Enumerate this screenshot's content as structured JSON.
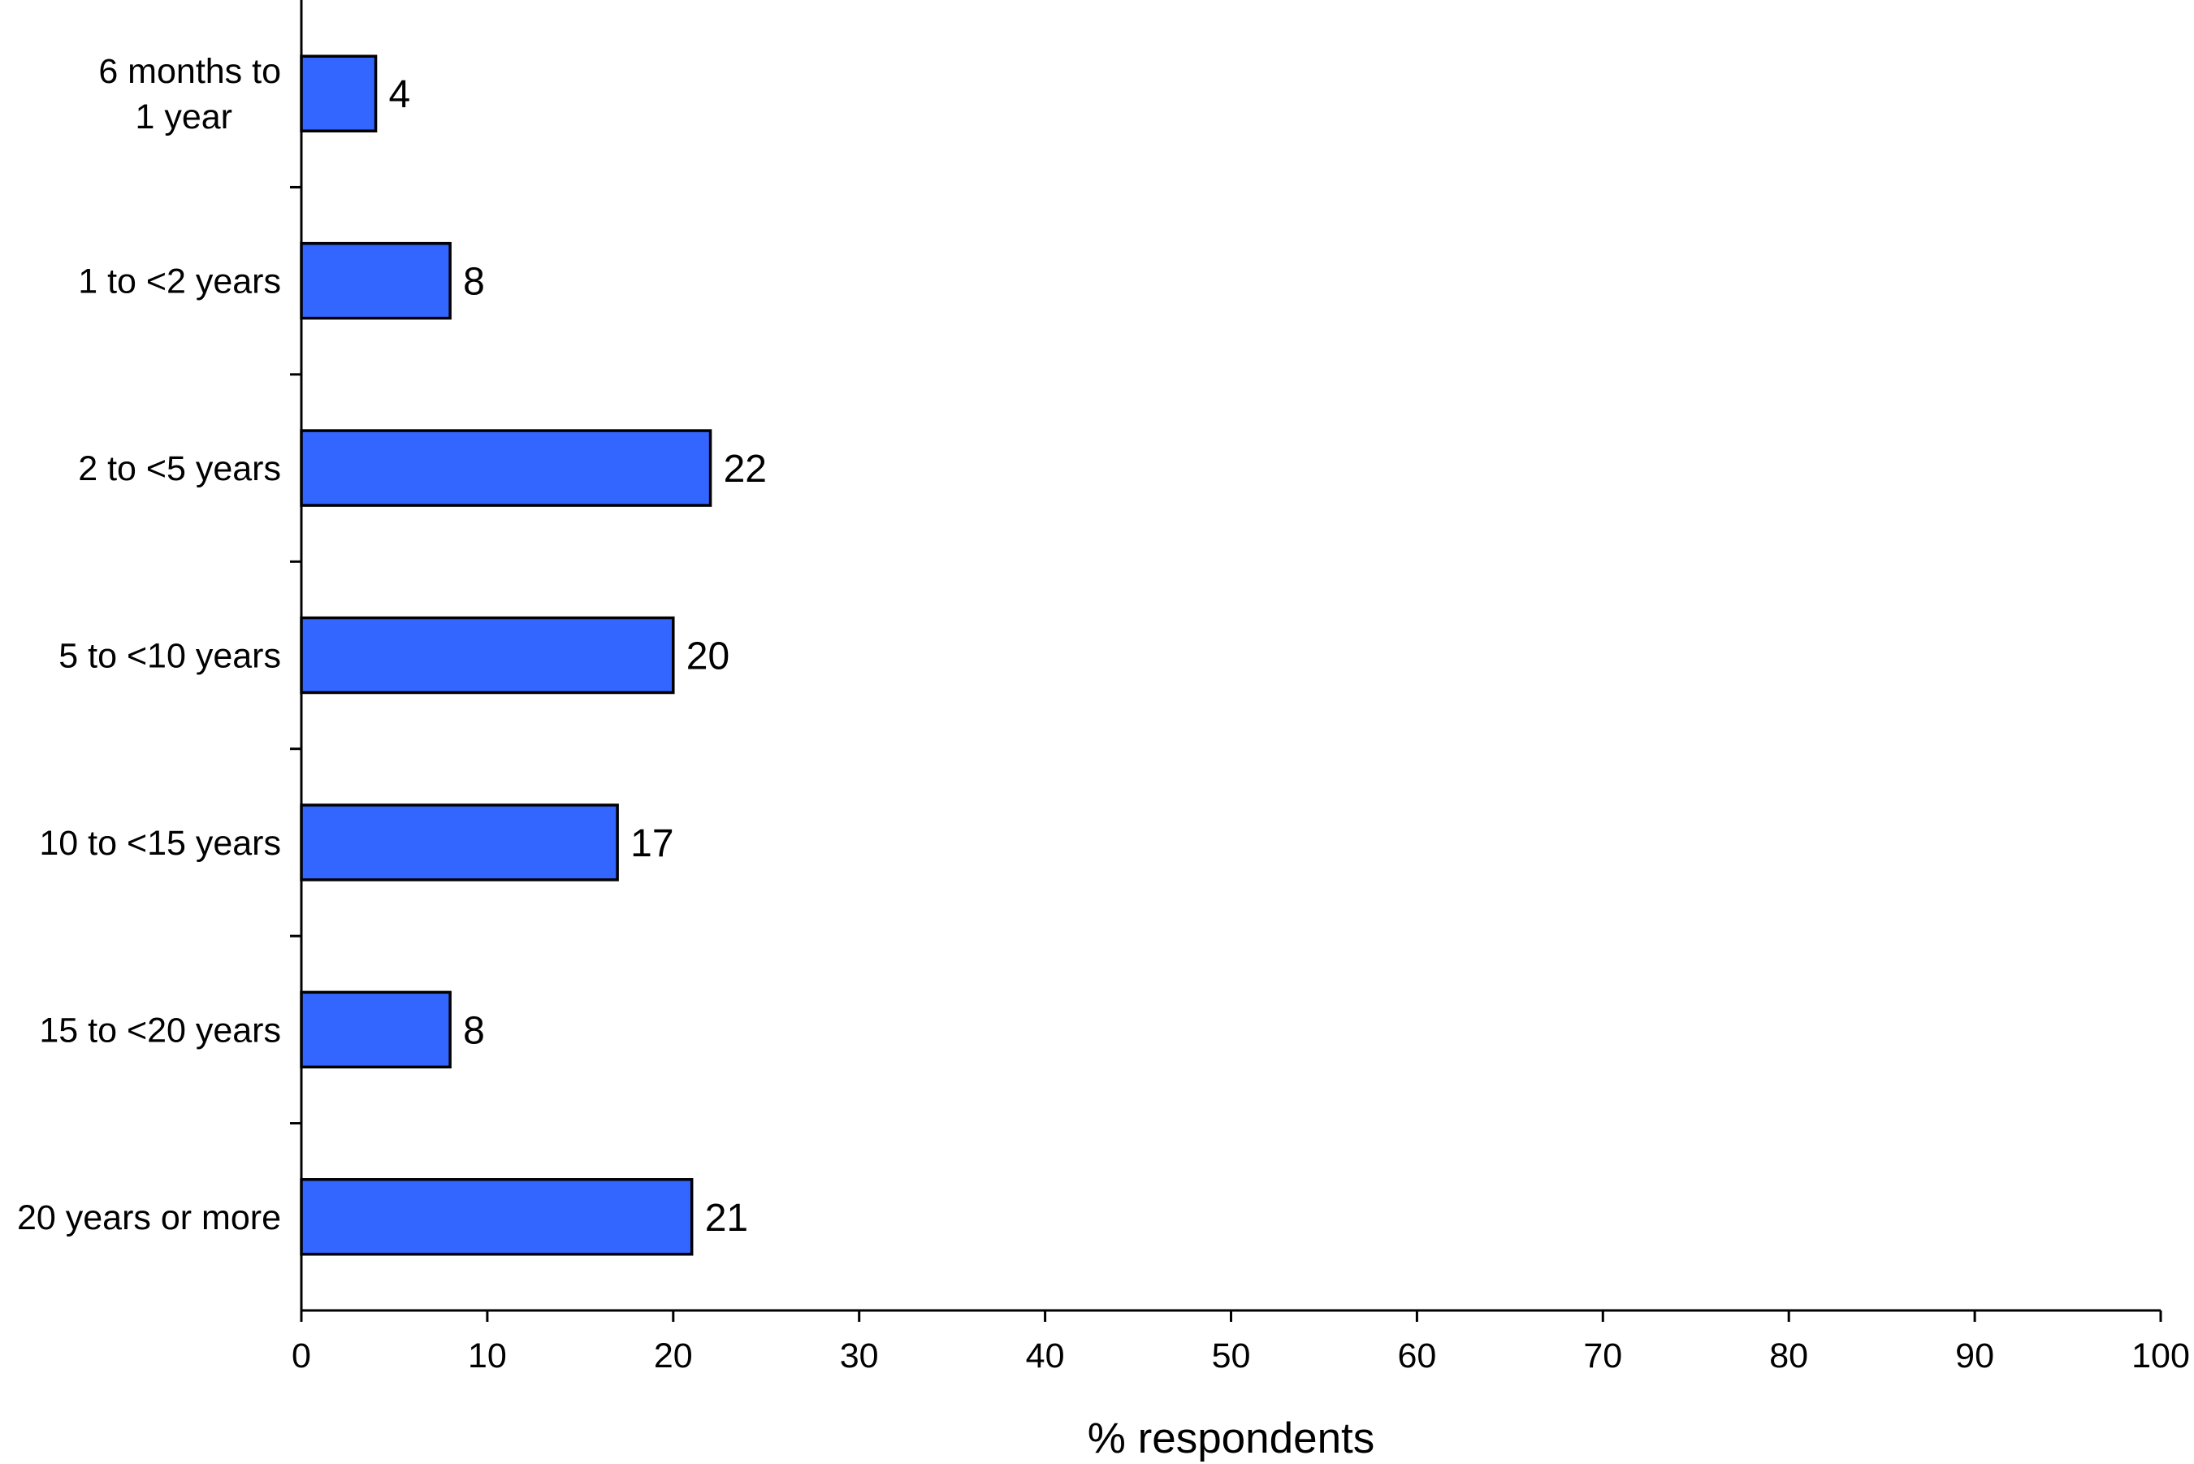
{
  "chart_data": {
    "type": "bar",
    "orientation": "horizontal",
    "categories": [
      [
        "6 months to",
        "1 year"
      ],
      [
        "1 to <2 years"
      ],
      [
        "2 to <5 years"
      ],
      [
        "5 to <10 years"
      ],
      [
        "10 to <15 years"
      ],
      [
        "15 to <20 years"
      ],
      [
        "20 years or more"
      ]
    ],
    "values": [
      4,
      8,
      22,
      20,
      17,
      8,
      21
    ],
    "value_labels": [
      "4",
      "8",
      "22",
      "20",
      "17",
      "8",
      "21"
    ],
    "title": "",
    "xlabel": "% respondents",
    "ylabel": "",
    "xlim": [
      0,
      100
    ],
    "xticks": [
      0,
      10,
      20,
      30,
      40,
      50,
      60,
      70,
      80,
      90,
      100
    ],
    "grid": false,
    "legend": "none",
    "bar_color": "#3366ff",
    "edge_color": "#000000"
  }
}
